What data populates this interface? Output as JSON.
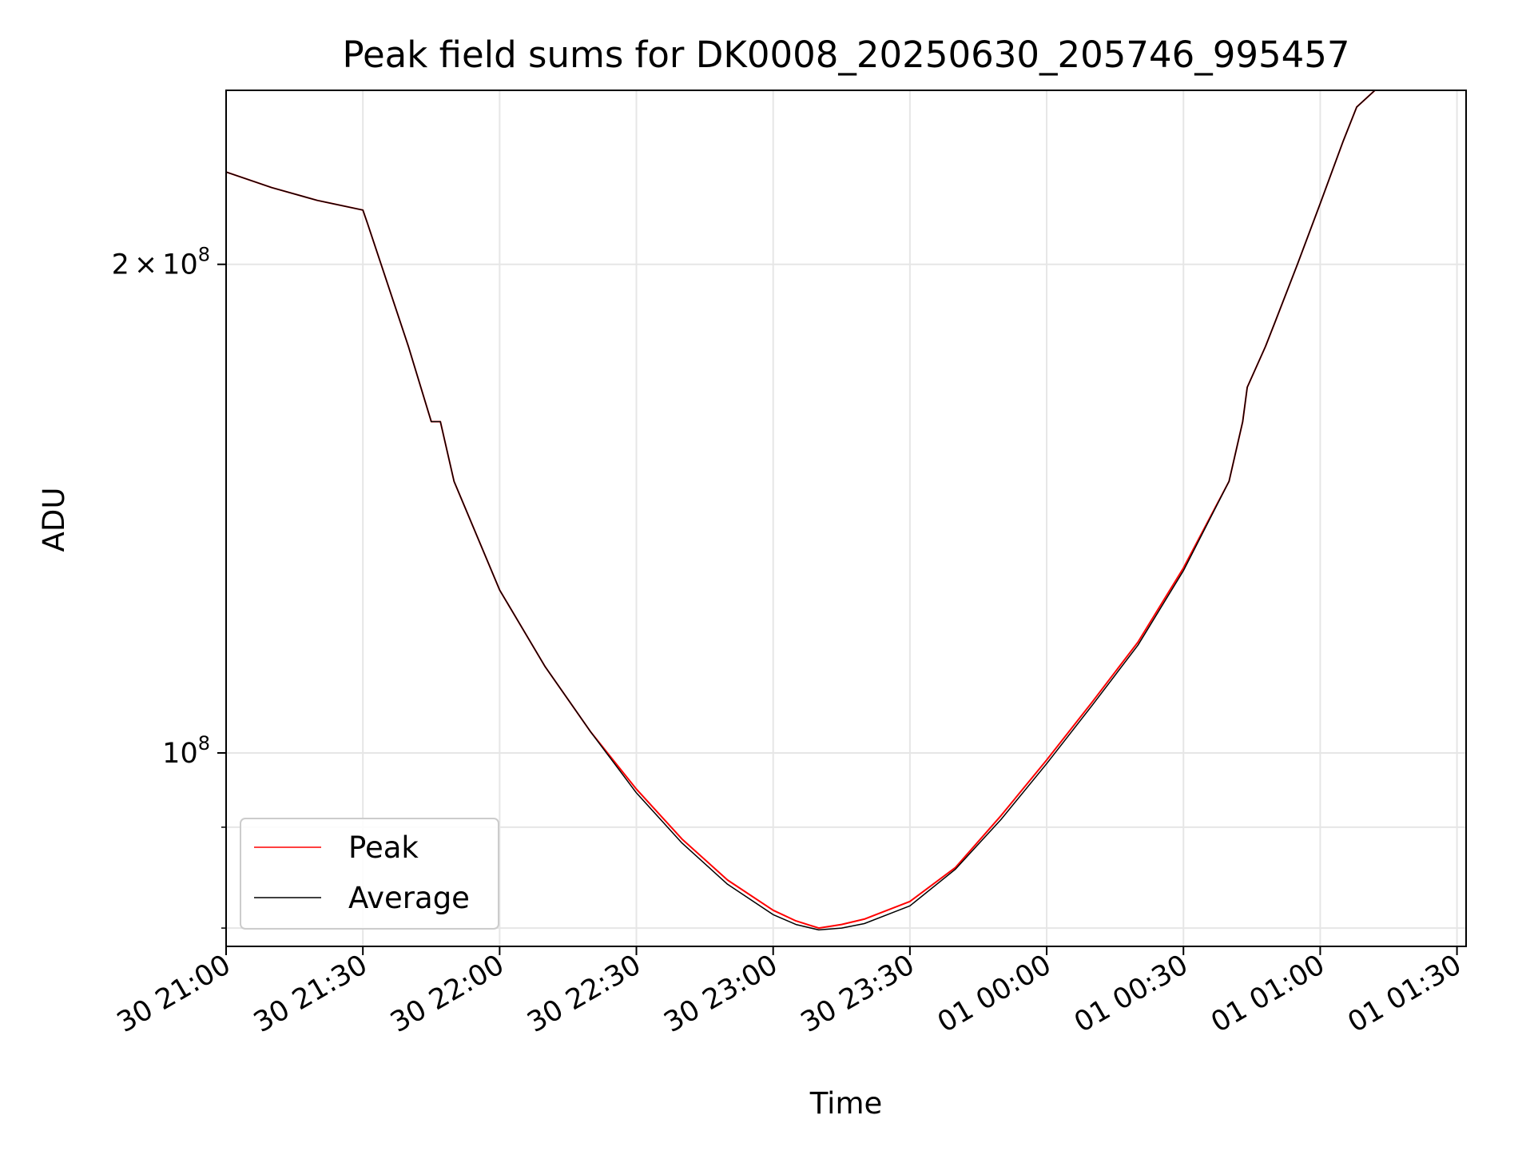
{
  "chart_data": {
    "type": "line",
    "title": "Peak field sums for DK0008_20250630_205746_995457",
    "xlabel": "Time",
    "ylabel": "ADU",
    "yscale": "log",
    "grid": true,
    "legend_placement": "lower-left",
    "xlim": [
      "2025-06-30 21:00",
      "2025-07-01 01:32"
    ],
    "ylim": [
      76000000,
      256000000
    ],
    "x_ticks": [
      {
        "t": "2025-06-30 21:00",
        "label": "30 21:00"
      },
      {
        "t": "2025-06-30 21:30",
        "label": "30 21:30"
      },
      {
        "t": "2025-06-30 22:00",
        "label": "30 22:00"
      },
      {
        "t": "2025-06-30 22:30",
        "label": "30 22:30"
      },
      {
        "t": "2025-06-30 23:00",
        "label": "30 23:00"
      },
      {
        "t": "2025-06-30 23:30",
        "label": "30 23:30"
      },
      {
        "t": "2025-07-01 00:00",
        "label": "01 00:00"
      },
      {
        "t": "2025-07-01 00:30",
        "label": "01 00:30"
      },
      {
        "t": "2025-07-01 01:00",
        "label": "01 01:00"
      },
      {
        "t": "2025-07-01 01:30",
        "label": "01 01:30"
      }
    ],
    "y_major_ticks": [
      {
        "v": 100000000,
        "mantissa": "",
        "exponent": "8"
      },
      {
        "v": 200000000,
        "mantissa": "2",
        "exponent": "8"
      }
    ],
    "y_minor_ticks": [
      78000000,
      90000000
    ],
    "series": [
      {
        "name": "Peak",
        "color": "#ff0000",
        "x": [
          "2025-06-30 21:00",
          "2025-06-30 21:10",
          "2025-06-30 21:20",
          "2025-06-30 21:30",
          "2025-06-30 21:31",
          "2025-06-30 21:40",
          "2025-06-30 21:45",
          "2025-06-30 21:47",
          "2025-06-30 21:50",
          "2025-06-30 22:00",
          "2025-06-30 22:10",
          "2025-06-30 22:20",
          "2025-06-30 22:30",
          "2025-06-30 22:40",
          "2025-06-30 22:50",
          "2025-06-30 23:00",
          "2025-06-30 23:05",
          "2025-06-30 23:10",
          "2025-06-30 23:15",
          "2025-06-30 23:20",
          "2025-06-30 23:30",
          "2025-06-30 23:40",
          "2025-06-30 23:50",
          "2025-07-01 00:00",
          "2025-07-01 00:10",
          "2025-07-01 00:20",
          "2025-07-01 00:30",
          "2025-07-01 00:40",
          "2025-07-01 00:43",
          "2025-07-01 00:44",
          "2025-07-01 00:48",
          "2025-07-01 00:50",
          "2025-07-01 00:55",
          "2025-07-01 01:00",
          "2025-07-01 01:05",
          "2025-07-01 01:08",
          "2025-07-01 01:12",
          "2025-07-01 01:15"
        ],
        "values": [
          228000000,
          223000000,
          219000000,
          216000000,
          212000000,
          178000000,
          160000000,
          160000000,
          147000000,
          126000000,
          113000000,
          103000000,
          95000000,
          88500000,
          83500000,
          80000000,
          78800000,
          78000000,
          78400000,
          79000000,
          81000000,
          85000000,
          91500000,
          99000000,
          107500000,
          117000000,
          130000000,
          147000000,
          160000000,
          168000000,
          178000000,
          184000000,
          200000000,
          218000000,
          238000000,
          250000000,
          256000000,
          256000000
        ]
      },
      {
        "name": "Average",
        "color": "#000000",
        "x": [
          "2025-06-30 21:00",
          "2025-06-30 21:10",
          "2025-06-30 21:20",
          "2025-06-30 21:30",
          "2025-06-30 21:31",
          "2025-06-30 21:40",
          "2025-06-30 21:45",
          "2025-06-30 21:47",
          "2025-06-30 21:50",
          "2025-06-30 22:00",
          "2025-06-30 22:10",
          "2025-06-30 22:20",
          "2025-06-30 22:30",
          "2025-06-30 22:40",
          "2025-06-30 22:50",
          "2025-06-30 23:00",
          "2025-06-30 23:05",
          "2025-06-30 23:10",
          "2025-06-30 23:15",
          "2025-06-30 23:20",
          "2025-06-30 23:30",
          "2025-06-30 23:40",
          "2025-06-30 23:50",
          "2025-07-01 00:00",
          "2025-07-01 00:10",
          "2025-07-01 00:20",
          "2025-07-01 00:30",
          "2025-07-01 00:40",
          "2025-07-01 00:43",
          "2025-07-01 00:44",
          "2025-07-01 00:48",
          "2025-07-01 00:50",
          "2025-07-01 00:55",
          "2025-07-01 01:00",
          "2025-07-01 01:05",
          "2025-07-01 01:08",
          "2025-07-01 01:12",
          "2025-07-01 01:15"
        ],
        "values": [
          228000000,
          223000000,
          219000000,
          216000000,
          212000000,
          178000000,
          160000000,
          160000000,
          147000000,
          126000000,
          113000000,
          103000000,
          94500000,
          88000000,
          83000000,
          79500000,
          78400000,
          77800000,
          78000000,
          78500000,
          80500000,
          84800000,
          91000000,
          98500000,
          107000000,
          116500000,
          129500000,
          147000000,
          160000000,
          168000000,
          178000000,
          184000000,
          200000000,
          218000000,
          238000000,
          250000000,
          256000000,
          256000000
        ]
      }
    ]
  }
}
